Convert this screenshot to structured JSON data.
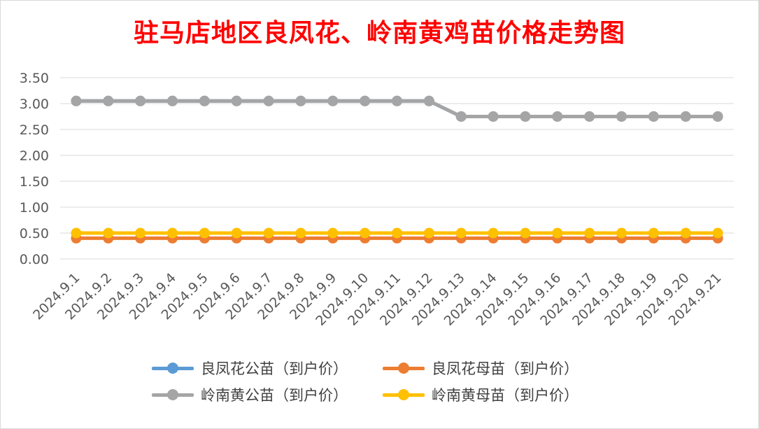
{
  "chart_data": {
    "type": "line",
    "title": "驻马店地区良凤花、岭南黄鸡苗价格走势图",
    "xlabel": "",
    "ylabel": "",
    "ylim": [
      0,
      3.5
    ],
    "yticks": [
      "0.00",
      "0.50",
      "1.00",
      "1.50",
      "2.00",
      "2.50",
      "3.00",
      "3.50"
    ],
    "grid": true,
    "legend_position": "bottom",
    "categories": [
      "2024.9.1",
      "2024.9.2",
      "2024.9.3",
      "2024.9.4",
      "2024.9.5",
      "2024.9.6",
      "2024.9.7",
      "2024.9.8",
      "2024.9.9",
      "2024.9.10",
      "2024.9.11",
      "2024.9.12",
      "2024.9.13",
      "2024.9.14",
      "2024.9.15",
      "2024.9.16",
      "2024.9.17",
      "2024.9.18",
      "2024.9.19",
      "2024.9.20",
      "2024.9.21"
    ],
    "series": [
      {
        "name": "良凤花公苗（到户价）",
        "color": "#5b9bd5",
        "values": [
          3.05,
          3.05,
          3.05,
          3.05,
          3.05,
          3.05,
          3.05,
          3.05,
          3.05,
          3.05,
          3.05,
          3.05,
          2.75,
          2.75,
          2.75,
          2.75,
          2.75,
          2.75,
          2.75,
          2.75,
          2.75
        ]
      },
      {
        "name": "良凤花母苗（到户价）",
        "color": "#ed7d31",
        "values": [
          0.4,
          0.4,
          0.4,
          0.4,
          0.4,
          0.4,
          0.4,
          0.4,
          0.4,
          0.4,
          0.4,
          0.4,
          0.4,
          0.4,
          0.4,
          0.4,
          0.4,
          0.4,
          0.4,
          0.4,
          0.4
        ]
      },
      {
        "name": "岭南黄公苗（到户价）",
        "color": "#a5a5a5",
        "values": [
          3.05,
          3.05,
          3.05,
          3.05,
          3.05,
          3.05,
          3.05,
          3.05,
          3.05,
          3.05,
          3.05,
          3.05,
          2.75,
          2.75,
          2.75,
          2.75,
          2.75,
          2.75,
          2.75,
          2.75,
          2.75
        ]
      },
      {
        "name": "岭南黄母苗（到户价）",
        "color": "#ffc000",
        "values": [
          0.5,
          0.5,
          0.5,
          0.5,
          0.5,
          0.5,
          0.5,
          0.5,
          0.5,
          0.5,
          0.5,
          0.5,
          0.5,
          0.5,
          0.5,
          0.5,
          0.5,
          0.5,
          0.5,
          0.5,
          0.5
        ]
      }
    ]
  },
  "legend": {
    "items": [
      {
        "label": "良凤花公苗（到户价）",
        "color": "#5b9bd5"
      },
      {
        "label": "良凤花母苗（到户价）",
        "color": "#ed7d31"
      },
      {
        "label": "岭南黄公苗（到户价）",
        "color": "#a5a5a5"
      },
      {
        "label": "岭南黄母苗（到户价）",
        "color": "#ffc000"
      }
    ]
  }
}
